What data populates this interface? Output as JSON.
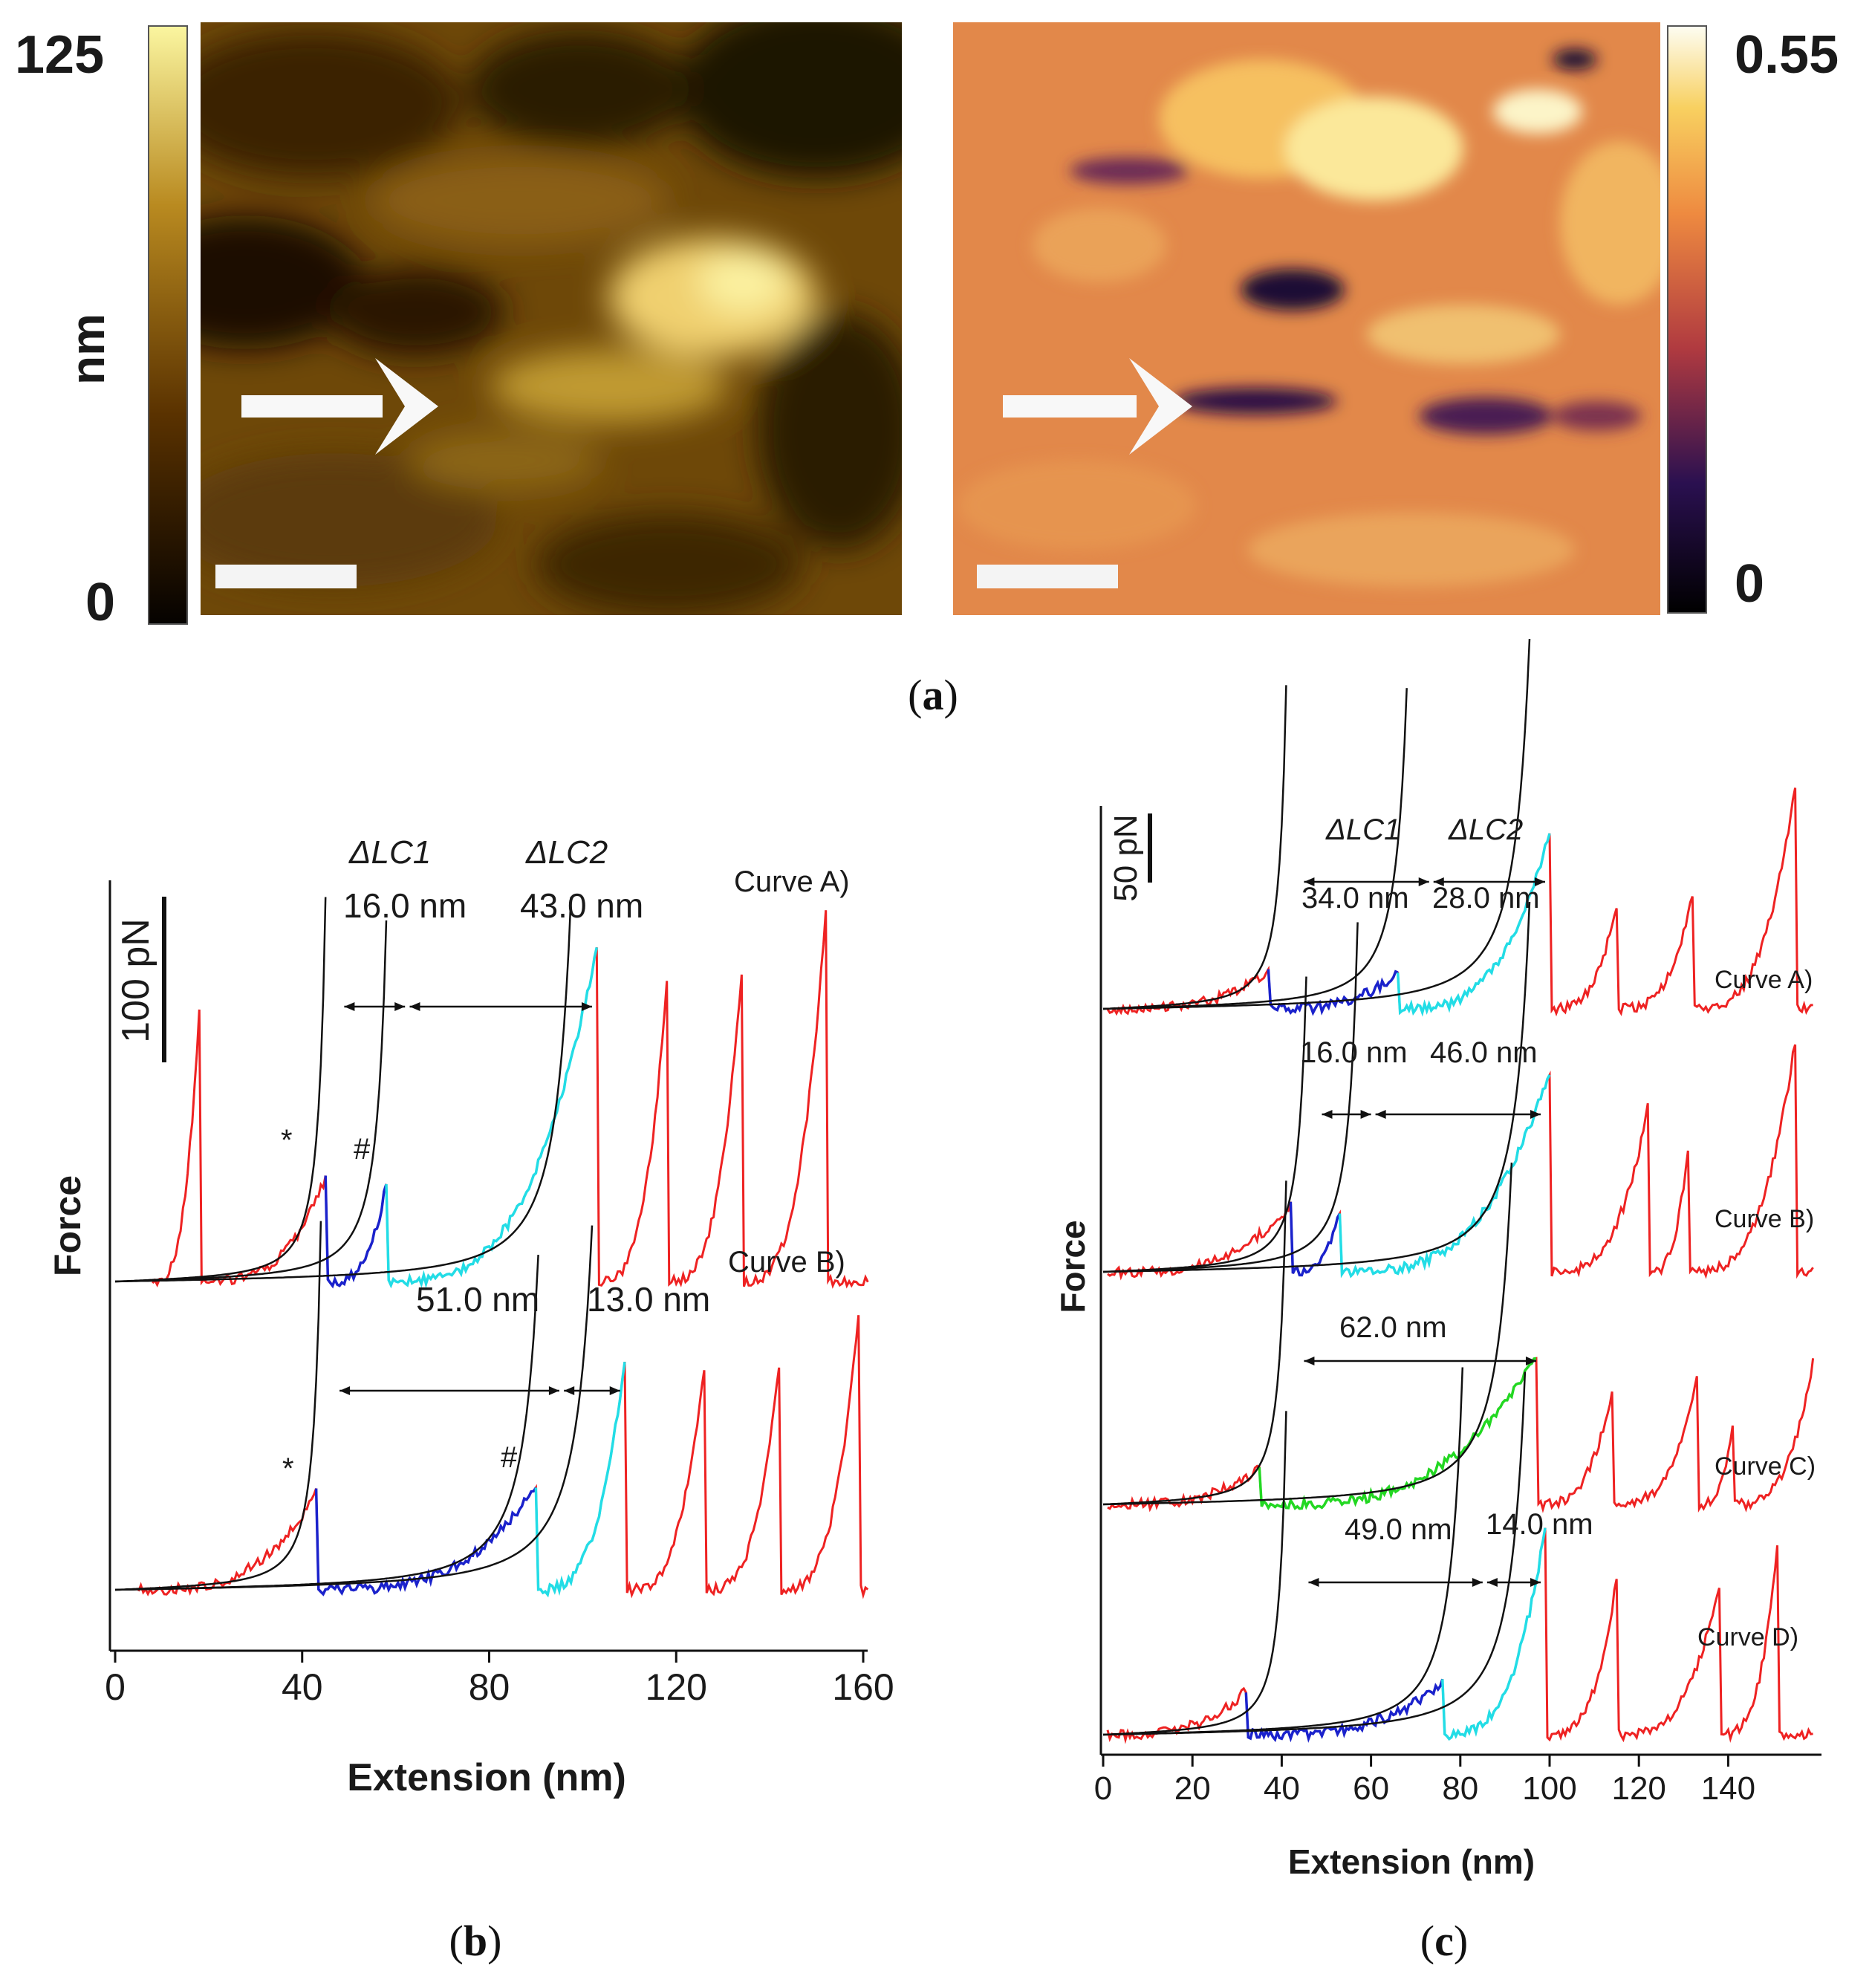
{
  "panel_a": {
    "caption_label": "a",
    "height_colorbar": {
      "max_label": "125",
      "min_label": "0",
      "unit": "nm",
      "min": 0,
      "max": 125
    },
    "second_colorbar": {
      "max_label": "0.55",
      "min_label": "0",
      "min": 0,
      "max": 0.55
    }
  },
  "chart_data": [
    {
      "panel": "b",
      "type": "line",
      "caption_label": "b",
      "xlabel": "Extension (nm)",
      "ylabel": "Force",
      "xlim": [
        0,
        160
      ],
      "xticks": [
        0,
        40,
        80,
        120,
        160
      ],
      "scale_bar_label": "100 pN",
      "curves": [
        {
          "name": "Curve A)",
          "peaks": [
            18,
            45,
            58,
            103,
            118,
            134,
            152
          ],
          "delta_lc_labels": [
            "ΔLC1",
            "ΔLC2"
          ],
          "delta_lc_values": [
            "16.0 nm",
            "43.0 nm"
          ],
          "markers": [
            "*",
            "#"
          ]
        },
        {
          "name": "Curve B)",
          "peaks": [
            43,
            90,
            109,
            126,
            142,
            159
          ],
          "delta_lc_values": [
            "51.0 nm",
            "13.0 nm"
          ],
          "markers": [
            "*",
            "#"
          ]
        }
      ]
    },
    {
      "panel": "c",
      "type": "line",
      "caption_label": "c",
      "xlabel": "Extension (nm)",
      "ylabel": "Force",
      "xlim": [
        0,
        160
      ],
      "xticks": [
        0,
        20,
        40,
        60,
        80,
        100,
        120,
        140
      ],
      "scale_bar_label": "50 pN",
      "curves": [
        {
          "name": "Curve A)",
          "peaks": [
            37,
            66,
            100,
            115,
            132,
            155
          ],
          "delta_lc_labels": [
            "ΔLC1",
            "ΔLC2"
          ],
          "delta_lc_values": [
            "34.0 nm",
            "28.0 nm"
          ]
        },
        {
          "name": "Curve B)",
          "peaks": [
            42,
            53,
            100,
            122,
            131,
            155
          ],
          "delta_lc_values": [
            "16.0 nm",
            "46.0 nm"
          ]
        },
        {
          "name": "Curve C)",
          "peaks": [
            35,
            97,
            114,
            133,
            141,
            159
          ],
          "delta_lc_values": [
            "62.0 nm"
          ]
        },
        {
          "name": "Curve D)",
          "peaks": [
            32,
            76,
            99,
            115,
            138,
            151
          ],
          "delta_lc_values": [
            "49.0 nm",
            "14.0 nm"
          ]
        }
      ]
    }
  ],
  "colors": {
    "red": "#ee2222",
    "blue": "#1a22cc",
    "cyan": "#22dde6",
    "green": "#22d822",
    "black": "#111111"
  }
}
